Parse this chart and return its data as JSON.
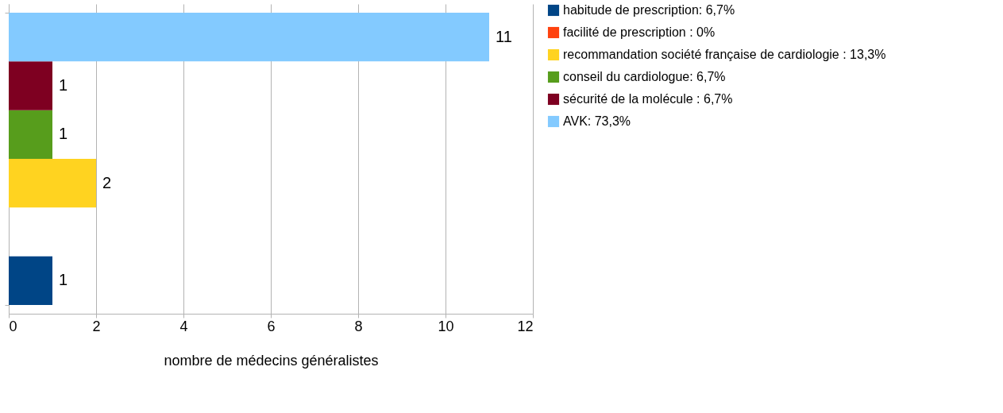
{
  "chart_data": {
    "type": "bar",
    "orientation": "horizontal",
    "xlabel": "nombre de médecins généralistes",
    "categories": [
      null
    ],
    "series": [
      {
        "name": "habitude de prescription: 6,7%",
        "color": "#004586",
        "values": [
          1
        ],
        "value_labels": [
          "1"
        ]
      },
      {
        "name": "facilité de prescription : 0%",
        "color": "#ff420e",
        "values": [
          0
        ],
        "value_labels": [
          null
        ]
      },
      {
        "name": "recommandation société française de cardiologie : 13,3%",
        "color": "#ffd320",
        "values": [
          2
        ],
        "value_labels": [
          "2"
        ]
      },
      {
        "name": "conseil du cardiologue: 6,7%",
        "color": "#579d1c",
        "values": [
          1
        ],
        "value_labels": [
          "1"
        ]
      },
      {
        "name": "sécurité de la molécule : 6,7%",
        "color": "#7e0021",
        "values": [
          1
        ],
        "value_labels": [
          "1"
        ]
      },
      {
        "name": "AVK: 73,3%",
        "color": "#83caff",
        "values": [
          11
        ],
        "value_labels": [
          "11"
        ]
      }
    ],
    "xlim": [
      0,
      12
    ],
    "xticks": [
      0,
      2,
      4,
      6,
      8,
      10,
      12
    ],
    "grid": "x",
    "legend": "right",
    "tick_labels": "x"
  }
}
